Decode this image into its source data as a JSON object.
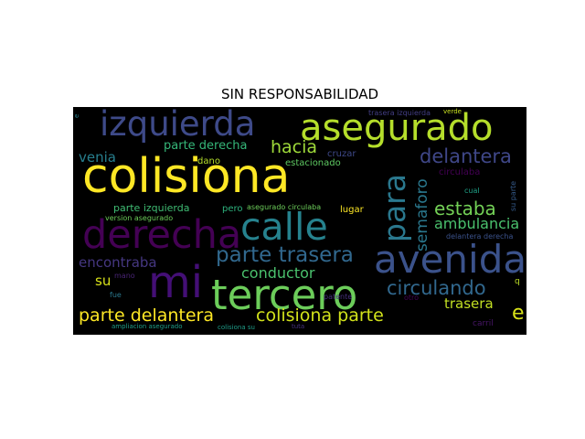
{
  "title": "SIN RESPONSABILIDAD",
  "palette": {
    "yellow": "#fde725",
    "lime": "#a0da39",
    "green": "#4ac16d",
    "teal": "#1fa187",
    "steel": "#277f8e",
    "blue": "#365c8d",
    "indigo": "#46327e",
    "purple": "#440154"
  },
  "words": [
    {
      "text": "colisiona",
      "color": "#fde725"
    },
    {
      "text": "asegurado",
      "color": "#b5de2b"
    },
    {
      "text": "izquierda",
      "color": "#3e4a89"
    },
    {
      "text": "derecha",
      "color": "#440154"
    },
    {
      "text": "calle",
      "color": "#26828e"
    },
    {
      "text": "avenida",
      "color": "#3b528b"
    },
    {
      "text": "tercero",
      "color": "#6ccd5a"
    },
    {
      "text": "mi",
      "color": "#440f76"
    },
    {
      "text": "para",
      "color": "#2a788e"
    },
    {
      "text": "parte trasera",
      "color": "#31688e"
    },
    {
      "text": "hacia",
      "color": "#9fda3a"
    },
    {
      "text": "delantera",
      "color": "#3f4788"
    },
    {
      "text": "estaba",
      "color": "#73d056"
    },
    {
      "text": "semaforo",
      "color": "#2a788e"
    },
    {
      "text": "ambulancia",
      "color": "#4ac16d"
    },
    {
      "text": "circulando",
      "color": "#31688e"
    },
    {
      "text": "parte delantera",
      "color": "#fde725"
    },
    {
      "text": "colisiona parte",
      "color": "#d2e21b"
    },
    {
      "text": "parte derecha",
      "color": "#35b779"
    },
    {
      "text": "venia",
      "color": "#277f8e"
    },
    {
      "text": "encontraba",
      "color": "#453781"
    },
    {
      "text": "conductor",
      "color": "#4ac16d"
    },
    {
      "text": "su",
      "color": "#d8e219"
    },
    {
      "text": "trasera",
      "color": "#c2df23"
    },
    {
      "text": "e",
      "color": "#d8e219"
    },
    {
      "text": "cruzar",
      "color": "#3e4989"
    },
    {
      "text": "estacionado",
      "color": "#5ec962"
    },
    {
      "text": "dano",
      "color": "#b5de2b"
    },
    {
      "text": "parte izquierda",
      "color": "#3fbc73"
    },
    {
      "text": "pero",
      "color": "#2db27d"
    },
    {
      "text": "lugar",
      "color": "#fde725"
    },
    {
      "text": "version asegurado",
      "color": "#6ccd5a"
    },
    {
      "text": "asegurado circulaba",
      "color": "#6ccd5a"
    },
    {
      "text": "circulaba",
      "color": "#440154"
    },
    {
      "text": "cual",
      "color": "#1fa187"
    },
    {
      "text": "su parte",
      "color": "#365c8d"
    },
    {
      "text": "delantera derecha",
      "color": "#3b528b"
    },
    {
      "text": "mano",
      "color": "#482475"
    },
    {
      "text": "patente",
      "color": "#46327e"
    },
    {
      "text": "fue",
      "color": "#2a788e"
    },
    {
      "text": "otro",
      "color": "#440154"
    },
    {
      "text": "ampliacion asegurado",
      "color": "#1f9e89"
    },
    {
      "text": "colisiona su",
      "color": "#1f9e89"
    },
    {
      "text": "tuta",
      "color": "#46327e"
    },
    {
      "text": "carril",
      "color": "#481668"
    },
    {
      "text": "trasera izquierda",
      "color": "#433e85"
    },
    {
      "text": "verde",
      "color": "#c8e020"
    },
    {
      "text": "q",
      "color": "#bddf26"
    },
    {
      "text": "e",
      "color": "#277f8e"
    }
  ]
}
